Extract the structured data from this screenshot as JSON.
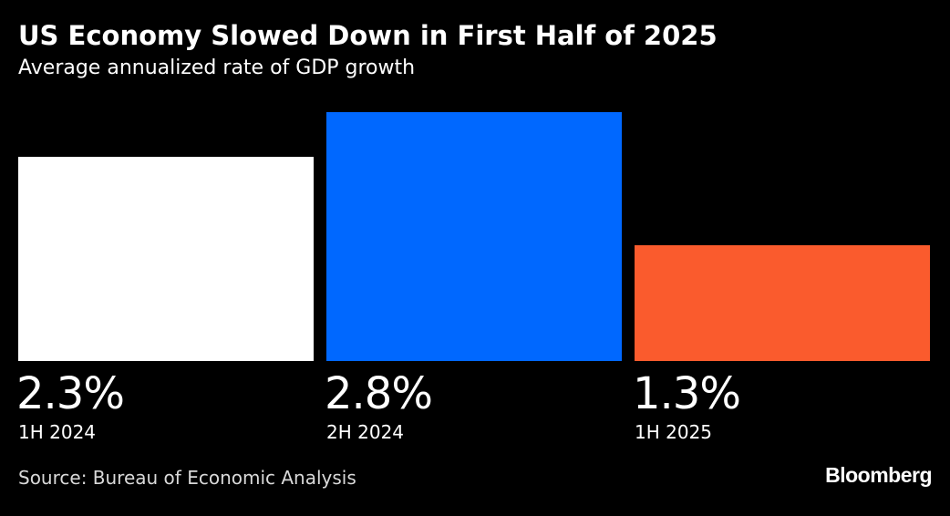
{
  "header": {
    "title": "US Economy Slowed Down in First Half of 2025",
    "subtitle": "Average annualized rate of GDP growth"
  },
  "footer": {
    "source": "Source: Bureau of Economic Analysis",
    "brand": "Bloomberg"
  },
  "chart_data": {
    "type": "bar",
    "title": "US Economy Slowed Down in First Half of 2025",
    "subtitle": "Average annualized rate of GDP growth",
    "categories": [
      "1H 2024",
      "2H 2024",
      "1H 2025"
    ],
    "values": [
      2.3,
      2.8,
      1.3
    ],
    "value_labels": [
      "2.3%",
      "2.8%",
      "1.3%"
    ],
    "colors": [
      "#ffffff",
      "#0068ff",
      "#fa5b2d"
    ],
    "unit": "%",
    "ylim": [
      0,
      2.8
    ],
    "xlabel": "",
    "ylabel": "",
    "grid": false,
    "legend": "none"
  }
}
